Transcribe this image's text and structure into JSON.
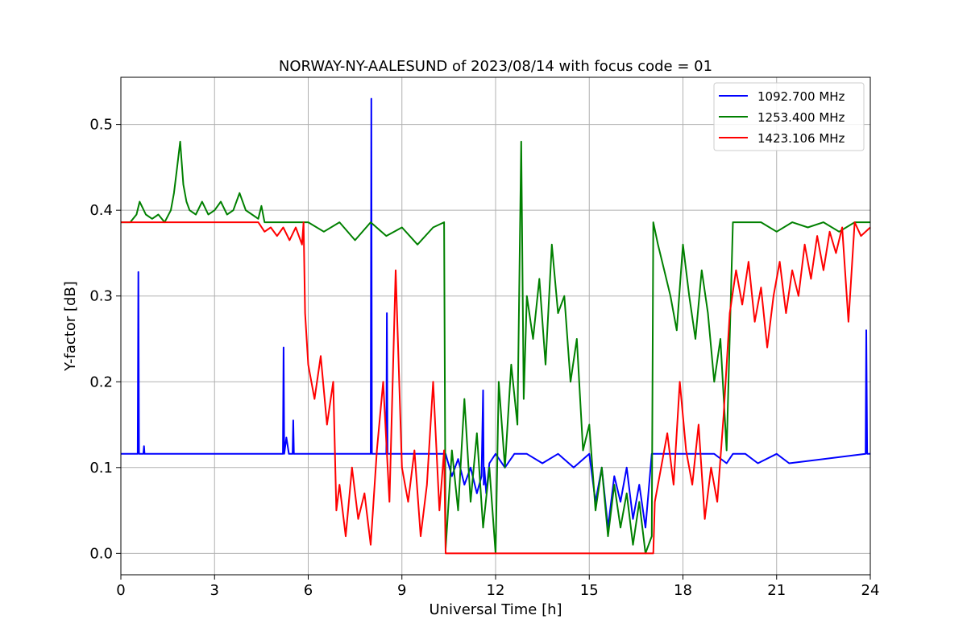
{
  "chart_data": {
    "type": "line",
    "title": "NORWAY-NY-AALESUND of 2023/08/14 with focus code = 01",
    "xlabel": "Universal Time [h]",
    "ylabel": "Y-factor [dB]",
    "xlim": [
      0,
      24
    ],
    "ylim": [
      -0.025,
      0.555
    ],
    "x_ticks": [
      0,
      3,
      6,
      9,
      12,
      15,
      18,
      21,
      24
    ],
    "x_tick_labels": [
      "0",
      "3",
      "6",
      "9",
      "12",
      "15",
      "18",
      "21",
      "24"
    ],
    "y_ticks": [
      0.0,
      0.1,
      0.2,
      0.3,
      0.4,
      0.5
    ],
    "y_tick_labels": [
      "0.0",
      "0.1",
      "0.2",
      "0.3",
      "0.4",
      "0.5"
    ],
    "grid": true,
    "legend_position": "top-right",
    "series": [
      {
        "name": "1092.700 MHz",
        "color": "#0000ff",
        "x": [
          0,
          0.54,
          0.56,
          0.58,
          0.72,
          0.74,
          0.76,
          5.19,
          5.21,
          5.23,
          5.3,
          5.38,
          5.5,
          5.52,
          5.54,
          8.0,
          8.02,
          8.04,
          8.5,
          8.52,
          8.54,
          10.4,
          10.6,
          10.8,
          11.0,
          11.2,
          11.4,
          11.55,
          11.6,
          11.62,
          11.64,
          11.7,
          11.8,
          12.0,
          12.3,
          12.6,
          13.0,
          13.5,
          14.0,
          14.5,
          15.0,
          15.2,
          15.4,
          15.6,
          15.8,
          16.0,
          16.2,
          16.4,
          16.6,
          16.8,
          17.0,
          17.2,
          18.0,
          19.0,
          19.4,
          19.6,
          20.0,
          20.4,
          21.0,
          21.4,
          23.85,
          23.87,
          23.9,
          24.0
        ],
        "y": [
          0.116,
          0.116,
          0.328,
          0.116,
          0.116,
          0.125,
          0.116,
          0.116,
          0.24,
          0.116,
          0.135,
          0.116,
          0.116,
          0.155,
          0.116,
          0.116,
          0.53,
          0.116,
          0.116,
          0.28,
          0.116,
          0.116,
          0.09,
          0.11,
          0.08,
          0.1,
          0.07,
          0.09,
          0.19,
          0.08,
          0.1,
          0.07,
          0.105,
          0.116,
          0.1,
          0.116,
          0.116,
          0.105,
          0.116,
          0.1,
          0.116,
          0.06,
          0.1,
          0.03,
          0.09,
          0.06,
          0.1,
          0.04,
          0.08,
          0.03,
          0.116,
          0.116,
          0.116,
          0.116,
          0.105,
          0.116,
          0.116,
          0.105,
          0.116,
          0.105,
          0.116,
          0.26,
          0.116,
          0.116
        ]
      },
      {
        "name": "1253.400 MHz",
        "color": "#008000",
        "x": [
          0,
          0.3,
          0.5,
          0.6,
          0.8,
          1.0,
          1.2,
          1.4,
          1.6,
          1.7,
          1.8,
          1.9,
          2.0,
          2.1,
          2.2,
          2.4,
          2.6,
          2.8,
          3.0,
          3.2,
          3.4,
          3.6,
          3.8,
          4.0,
          4.2,
          4.4,
          4.5,
          4.6,
          6.0,
          6.5,
          7.0,
          7.5,
          8.0,
          8.5,
          9.0,
          9.5,
          10.0,
          10.35,
          10.4,
          10.6,
          10.8,
          11.0,
          11.2,
          11.4,
          11.6,
          11.8,
          12.0,
          12.1,
          12.3,
          12.5,
          12.7,
          12.82,
          12.9,
          13.0,
          13.2,
          13.4,
          13.6,
          13.8,
          14.0,
          14.2,
          14.4,
          14.6,
          14.8,
          15.0,
          15.2,
          15.4,
          15.6,
          15.8,
          16.0,
          16.2,
          16.4,
          16.6,
          16.8,
          17.0,
          17.05,
          17.2,
          17.4,
          17.6,
          17.8,
          18.0,
          18.2,
          18.4,
          18.6,
          18.8,
          19.0,
          19.2,
          19.4,
          19.6,
          20.0,
          20.5,
          21.0,
          21.5,
          22.0,
          22.5,
          23.0,
          23.5,
          24.0
        ],
        "y": [
          0.386,
          0.386,
          0.395,
          0.41,
          0.395,
          0.39,
          0.395,
          0.386,
          0.4,
          0.42,
          0.45,
          0.48,
          0.43,
          0.41,
          0.4,
          0.395,
          0.41,
          0.395,
          0.4,
          0.41,
          0.395,
          0.4,
          0.42,
          0.4,
          0.395,
          0.39,
          0.405,
          0.386,
          0.386,
          0.375,
          0.386,
          0.365,
          0.386,
          0.37,
          0.38,
          0.36,
          0.38,
          0.386,
          0.005,
          0.12,
          0.05,
          0.18,
          0.06,
          0.14,
          0.03,
          0.1,
          0.0,
          0.2,
          0.1,
          0.22,
          0.15,
          0.48,
          0.18,
          0.3,
          0.25,
          0.32,
          0.22,
          0.36,
          0.28,
          0.3,
          0.2,
          0.25,
          0.12,
          0.15,
          0.05,
          0.1,
          0.02,
          0.08,
          0.03,
          0.07,
          0.01,
          0.06,
          0.0,
          0.02,
          0.386,
          0.36,
          0.33,
          0.3,
          0.26,
          0.36,
          0.3,
          0.25,
          0.33,
          0.28,
          0.2,
          0.25,
          0.12,
          0.386,
          0.386,
          0.386,
          0.375,
          0.386,
          0.38,
          0.386,
          0.375,
          0.386,
          0.386
        ]
      },
      {
        "name": "1423.106 MHz",
        "color": "#ff0000",
        "x": [
          0,
          4.4,
          4.6,
          4.8,
          5.0,
          5.2,
          5.4,
          5.6,
          5.8,
          5.85,
          5.9,
          6.0,
          6.2,
          6.4,
          6.6,
          6.8,
          6.9,
          7.0,
          7.2,
          7.4,
          7.6,
          7.8,
          8.0,
          8.2,
          8.4,
          8.6,
          8.8,
          9.0,
          9.2,
          9.4,
          9.6,
          9.8,
          10.0,
          10.2,
          10.35,
          10.4,
          10.5,
          12.0,
          17.05,
          17.1,
          17.3,
          17.5,
          17.7,
          17.9,
          18.1,
          18.3,
          18.5,
          18.7,
          18.9,
          19.1,
          19.3,
          19.5,
          19.7,
          19.9,
          20.1,
          20.3,
          20.5,
          20.7,
          20.9,
          21.1,
          21.3,
          21.5,
          21.7,
          21.9,
          22.1,
          22.3,
          22.5,
          22.7,
          22.9,
          23.1,
          23.3,
          23.5,
          23.7,
          24.0
        ],
        "y": [
          0.386,
          0.386,
          0.375,
          0.38,
          0.37,
          0.38,
          0.365,
          0.38,
          0.36,
          0.386,
          0.28,
          0.22,
          0.18,
          0.23,
          0.15,
          0.2,
          0.05,
          0.08,
          0.02,
          0.1,
          0.04,
          0.07,
          0.01,
          0.12,
          0.2,
          0.06,
          0.33,
          0.1,
          0.06,
          0.12,
          0.02,
          0.08,
          0.2,
          0.05,
          0.12,
          0.0,
          0.0,
          0.0,
          0.0,
          0.06,
          0.1,
          0.14,
          0.08,
          0.2,
          0.12,
          0.08,
          0.15,
          0.04,
          0.1,
          0.06,
          0.16,
          0.28,
          0.33,
          0.29,
          0.34,
          0.27,
          0.31,
          0.24,
          0.3,
          0.34,
          0.28,
          0.33,
          0.3,
          0.36,
          0.32,
          0.37,
          0.33,
          0.375,
          0.35,
          0.38,
          0.27,
          0.386,
          0.37,
          0.38
        ]
      }
    ]
  }
}
